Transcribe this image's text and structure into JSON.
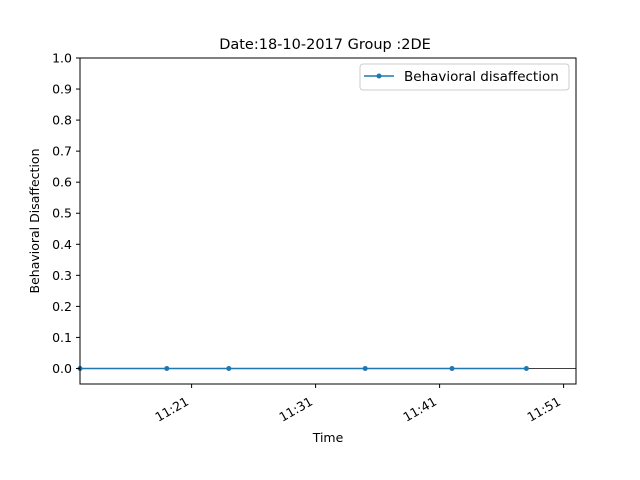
{
  "chart_data": {
    "type": "line",
    "title": "Date:18-10-2017 Group :2DE",
    "xlabel": "Time",
    "ylabel": "Behavioral Disaffection",
    "xlim": [
      "11:12",
      "11:52"
    ],
    "ylim": [
      -0.05,
      1.0
    ],
    "x_ticks": [
      "11:21",
      "11:31",
      "11:41",
      "11:51"
    ],
    "y_ticks": [
      "0.0",
      "0.1",
      "0.2",
      "0.3",
      "0.4",
      "0.5",
      "0.6",
      "0.7",
      "0.8",
      "0.9",
      "1.0"
    ],
    "grid": false,
    "legend_position": "top-right",
    "series": [
      {
        "name": "Behavioral disaffection",
        "color": "#1f77b4",
        "marker": "dot",
        "x": [
          "11:12",
          "11:19",
          "11:24",
          "11:35",
          "11:42",
          "11:48"
        ],
        "values": [
          0,
          0,
          0,
          0,
          0,
          0
        ]
      }
    ],
    "reference_lines": [
      {
        "axis": "y",
        "value": 0,
        "color": "#000000"
      }
    ]
  }
}
